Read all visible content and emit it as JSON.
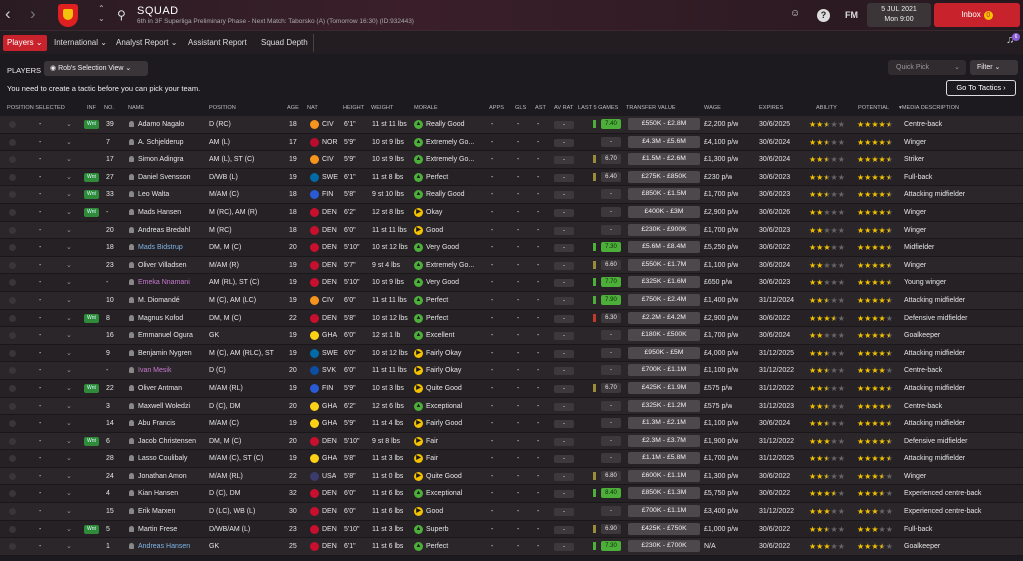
{
  "topbar": {
    "title": "SQUAD",
    "subtitle": "6th in 3F Superliga Preliminary Phase - Next Match: Taborsko (A) (Tomorrow 16:30) (ID:932443)",
    "date": "5 JUL 2021",
    "time": "Mon 9:00",
    "fm_label": "FM",
    "inbox_label": "Inbox",
    "inbox_badge": "0",
    "notif_badge": "6"
  },
  "tabs": [
    "Players",
    "International",
    "Analyst Report",
    "Assistant Report",
    "Squad Depth"
  ],
  "toolbar": {
    "players_label": "PLAYERS",
    "view": "Rob's Selection View",
    "quick_pick": "Quick Pick",
    "filter": "Filter",
    "message": "You need to create a tactic before you can pick your team.",
    "go_to_tactics": "Go To Tactics"
  },
  "columns": [
    "POSITION SELECTED",
    "INF",
    "NO.",
    "NAME",
    "POSITION",
    "AGE",
    "NAT",
    "HEIGHT",
    "WEIGHT",
    "MORALE",
    "APPS",
    "GLS",
    "AST",
    "AV RAT",
    "LAST 5 GAMES",
    "TRANSFER VALUE",
    "WAGE",
    "EXPIRES",
    "ABILITY",
    "POTENTIAL",
    "MEDIA DESCRIPTION"
  ],
  "colors": {
    "accent": "#c8232c",
    "wanted": "#2f8b3a",
    "star": "#f2c200"
  },
  "players": [
    {
      "inf": "Wnt",
      "no": "39",
      "name": "Adamo Nagalo",
      "pos": "D (RC)",
      "age": "18",
      "nat": "CIV",
      "nat_color": "#f7941d",
      "height": "6'1\"",
      "weight": "11 st 11 lbs",
      "morale": "Really Good",
      "m": "g",
      "apps": "-",
      "gls": "-",
      "ast": "-",
      "avr": "-",
      "form": "7.40",
      "form_c": "g",
      "value": "£550K - £2.8M",
      "wage": "£2,200 p/w",
      "expires": "30/6/2025",
      "ability": 2.5,
      "potential": 4.5,
      "media": "Centre-back",
      "style": ""
    },
    {
      "inf": "",
      "no": "7",
      "name": "A. Schjelderup",
      "pos": "AM (L)",
      "age": "17",
      "nat": "NOR",
      "nat_color": "#ba0c2f",
      "height": "5'9\"",
      "weight": "10 st 9 lbs",
      "morale": "Extremely Go...",
      "m": "g",
      "apps": "-",
      "gls": "-",
      "ast": "-",
      "avr": "-",
      "form": "-",
      "form_c": "",
      "value": "£4.3M - £5.6M",
      "wage": "£4,100 p/w",
      "expires": "30/6/2024",
      "ability": 2.5,
      "potential": 4.5,
      "media": "Winger",
      "style": ""
    },
    {
      "inf": "",
      "no": "17",
      "name": "Simon Adingra",
      "pos": "AM (L), ST (C)",
      "age": "19",
      "nat": "CIV",
      "nat_color": "#f7941d",
      "height": "5'9\"",
      "weight": "10 st 9 lbs",
      "morale": "Extremely Go...",
      "m": "g",
      "apps": "-",
      "gls": "-",
      "ast": "-",
      "avr": "-",
      "form": "6.70",
      "form_c": "n",
      "value": "£1.5M - £2.6M",
      "wage": "£1,300 p/w",
      "expires": "30/6/2024",
      "ability": 2.5,
      "potential": 4.5,
      "media": "Striker",
      "style": ""
    },
    {
      "inf": "Wnt",
      "no": "27",
      "name": "Daniel Svensson",
      "pos": "D/WB (L)",
      "age": "19",
      "nat": "SWE",
      "nat_color": "#006aa7",
      "height": "6'1\"",
      "weight": "11 st 8 lbs",
      "morale": "Perfect",
      "m": "g",
      "apps": "-",
      "gls": "-",
      "ast": "-",
      "avr": "-",
      "form": "6.40",
      "form_c": "n",
      "value": "£275K - £850K",
      "wage": "£230 p/w",
      "expires": "30/6/2023",
      "ability": 2.5,
      "potential": 4.5,
      "media": "Full-back",
      "style": ""
    },
    {
      "inf": "Wnt",
      "no": "33",
      "name": "Leo Walta",
      "pos": "M/AM (C)",
      "age": "18",
      "nat": "FIN",
      "nat_color": "#2a5bd7",
      "height": "5'8\"",
      "weight": "9 st 10 lbs",
      "morale": "Really Good",
      "m": "g",
      "apps": "-",
      "gls": "-",
      "ast": "-",
      "avr": "-",
      "form": "-",
      "form_c": "",
      "value": "£850K - £1.5M",
      "wage": "£1,700 p/w",
      "expires": "30/6/2023",
      "ability": 2.5,
      "potential": 4.5,
      "media": "Attacking midfielder",
      "style": ""
    },
    {
      "inf": "Wnt",
      "no": "-",
      "name": "Mads Hansen",
      "pos": "M (RC), AM (R)",
      "age": "18",
      "nat": "DEN",
      "nat_color": "#c8102e",
      "height": "6'2\"",
      "weight": "12 st 8 lbs",
      "morale": "Okay",
      "m": "y",
      "apps": "-",
      "gls": "-",
      "ast": "-",
      "avr": "-",
      "form": "-",
      "form_c": "",
      "value": "£400K - £3M",
      "wage": "£2,900 p/w",
      "expires": "30/6/2026",
      "ability": 2,
      "potential": 4.5,
      "media": "Winger",
      "style": ""
    },
    {
      "inf": "",
      "no": "20",
      "name": "Andreas Bredahl",
      "pos": "M (RC)",
      "age": "18",
      "nat": "DEN",
      "nat_color": "#c8102e",
      "height": "6'0\"",
      "weight": "11 st 11 lbs",
      "morale": "Good",
      "m": "y",
      "apps": "-",
      "gls": "-",
      "ast": "-",
      "avr": "-",
      "form": "-",
      "form_c": "",
      "value": "£230K - £900K",
      "wage": "£1,700 p/w",
      "expires": "30/6/2023",
      "ability": 2,
      "potential": 4.5,
      "media": "Winger",
      "style": ""
    },
    {
      "inf": "",
      "no": "18",
      "name": "Mads Bidstrup",
      "pos": "DM, M (C)",
      "age": "20",
      "nat": "DEN",
      "nat_color": "#c8102e",
      "height": "5'10\"",
      "weight": "10 st 12 lbs",
      "morale": "Very Good",
      "m": "g",
      "apps": "-",
      "gls": "-",
      "ast": "-",
      "avr": "-",
      "form": "7.30",
      "form_c": "g",
      "value": "£5.6M - £8.4M",
      "wage": "£5,250 p/w",
      "expires": "30/6/2022",
      "ability": 3,
      "potential": 4.5,
      "media": "Midfielder",
      "style": "lnk"
    },
    {
      "inf": "",
      "no": "23",
      "name": "Oliver Villadsen",
      "pos": "M/AM (R)",
      "age": "19",
      "nat": "DEN",
      "nat_color": "#c8102e",
      "height": "5'7\"",
      "weight": "9 st 4 lbs",
      "morale": "Extremely Go...",
      "m": "g",
      "apps": "-",
      "gls": "-",
      "ast": "-",
      "avr": "-",
      "form": "6.60",
      "form_c": "n",
      "value": "£550K - £1.7M",
      "wage": "£1,100 p/w",
      "expires": "30/6/2024",
      "ability": 2,
      "potential": 4.5,
      "media": "Winger",
      "style": ""
    },
    {
      "inf": "",
      "no": "-",
      "name": "Emeka Nnamani",
      "pos": "AM (RL), ST (C)",
      "age": "19",
      "nat": "DEN",
      "nat_color": "#c8102e",
      "height": "5'10\"",
      "weight": "10 st 9 lbs",
      "morale": "Very Good",
      "m": "g",
      "apps": "-",
      "gls": "-",
      "ast": "-",
      "avr": "-",
      "form": "7.70",
      "form_c": "g",
      "value": "£325K - £1.6M",
      "wage": "£650 p/w",
      "expires": "30/6/2023",
      "ability": 2,
      "potential": 4.5,
      "media": "Young winger",
      "style": "loan"
    },
    {
      "inf": "",
      "no": "10",
      "name": "M. Diomandé",
      "pos": "M (C), AM (LC)",
      "age": "19",
      "nat": "CIV",
      "nat_color": "#f7941d",
      "height": "6'0\"",
      "weight": "11 st 11 lbs",
      "morale": "Perfect",
      "m": "g",
      "apps": "-",
      "gls": "-",
      "ast": "-",
      "avr": "-",
      "form": "7.90",
      "form_c": "g",
      "value": "£750K - £2.4M",
      "wage": "£1,400 p/w",
      "expires": "31/12/2024",
      "ability": 2.5,
      "potential": 4.5,
      "media": "Attacking midfielder",
      "style": ""
    },
    {
      "inf": "Wnt",
      "no": "8",
      "name": "Magnus Kofod",
      "pos": "DM, M (C)",
      "age": "22",
      "nat": "DEN",
      "nat_color": "#c8102e",
      "height": "5'8\"",
      "weight": "10 st 12 lbs",
      "morale": "Perfect",
      "m": "g",
      "apps": "-",
      "gls": "-",
      "ast": "-",
      "avr": "-",
      "form": "6.30",
      "form_c": "r",
      "value": "£2.2M - £4.2M",
      "wage": "£2,900 p/w",
      "expires": "30/6/2022",
      "ability": 3.5,
      "potential": 4,
      "media": "Defensive midfielder",
      "style": ""
    },
    {
      "inf": "",
      "no": "16",
      "name": "Emmanuel Ogura",
      "pos": "GK",
      "age": "19",
      "nat": "GHA",
      "nat_color": "#fcd116",
      "height": "6'0\"",
      "weight": "12 st 1 lb",
      "morale": "Excellent",
      "m": "g",
      "apps": "-",
      "gls": "-",
      "ast": "-",
      "avr": "-",
      "form": "-",
      "form_c": "",
      "value": "£180K - £500K",
      "wage": "£1,700 p/w",
      "expires": "30/6/2024",
      "ability": 2,
      "potential": 4.5,
      "media": "Goalkeeper",
      "style": ""
    },
    {
      "inf": "",
      "no": "9",
      "name": "Benjamin Nygren",
      "pos": "M (C), AM (RLC), ST",
      "age": "19",
      "nat": "SWE",
      "nat_color": "#006aa7",
      "height": "6'0\"",
      "weight": "10 st 12 lbs",
      "morale": "Fairly Okay",
      "m": "y",
      "apps": "-",
      "gls": "-",
      "ast": "-",
      "avr": "-",
      "form": "-",
      "form_c": "",
      "value": "£950K - £5M",
      "wage": "£4,000 p/w",
      "expires": "31/12/2025",
      "ability": 2.5,
      "potential": 4.5,
      "media": "Attacking midfielder",
      "style": ""
    },
    {
      "inf": "",
      "no": "-",
      "name": "Ivan Mesik",
      "pos": "D (C)",
      "age": "20",
      "nat": "SVK",
      "nat_color": "#0b4ea2",
      "height": "6'0\"",
      "weight": "11 st 11 lbs",
      "morale": "Fairly Okay",
      "m": "y",
      "apps": "-",
      "gls": "-",
      "ast": "-",
      "avr": "-",
      "form": "-",
      "form_c": "",
      "value": "£700K - £1.1M",
      "wage": "£1,100 p/w",
      "expires": "31/12/2022",
      "ability": 2.5,
      "potential": 4,
      "media": "Centre-back",
      "style": "loan"
    },
    {
      "inf": "Wnt",
      "no": "22",
      "name": "Oliver Antman",
      "pos": "M/AM (RL)",
      "age": "19",
      "nat": "FIN",
      "nat_color": "#2a5bd7",
      "height": "5'9\"",
      "weight": "10 st 3 lbs",
      "morale": "Quite Good",
      "m": "y",
      "apps": "-",
      "gls": "-",
      "ast": "-",
      "avr": "-",
      "form": "6.70",
      "form_c": "n",
      "value": "£425K - £1.9M",
      "wage": "£575 p/w",
      "expires": "31/12/2022",
      "ability": 2.5,
      "potential": 4.5,
      "media": "Attacking midfielder",
      "style": ""
    },
    {
      "inf": "",
      "no": "3",
      "name": "Maxwell Woledzi",
      "pos": "D (C), DM",
      "age": "20",
      "nat": "GHA",
      "nat_color": "#fcd116",
      "height": "6'2\"",
      "weight": "12 st 6 lbs",
      "morale": "Exceptional",
      "m": "g",
      "apps": "-",
      "gls": "-",
      "ast": "-",
      "avr": "-",
      "form": "-",
      "form_c": "",
      "value": "£325K - £1.2M",
      "wage": "£575 p/w",
      "expires": "31/12/2023",
      "ability": 2.5,
      "potential": 4.5,
      "media": "Centre-back",
      "style": ""
    },
    {
      "inf": "",
      "no": "14",
      "name": "Abu Francis",
      "pos": "M/AM (C)",
      "age": "19",
      "nat": "GHA",
      "nat_color": "#fcd116",
      "height": "5'9\"",
      "weight": "11 st 4 lbs",
      "morale": "Fairly Good",
      "m": "y",
      "apps": "-",
      "gls": "-",
      "ast": "-",
      "avr": "-",
      "form": "-",
      "form_c": "",
      "value": "£1.3M - £2.1M",
      "wage": "£1,100 p/w",
      "expires": "30/6/2024",
      "ability": 2.5,
      "potential": 4.5,
      "media": "Attacking midfielder",
      "style": ""
    },
    {
      "inf": "Wnt",
      "no": "6",
      "name": "Jacob Christensen",
      "pos": "DM, M (C)",
      "age": "20",
      "nat": "DEN",
      "nat_color": "#c8102e",
      "height": "5'10\"",
      "weight": "9 st 8 lbs",
      "morale": "Fair",
      "m": "y",
      "apps": "-",
      "gls": "-",
      "ast": "-",
      "avr": "-",
      "form": "-",
      "form_c": "",
      "value": "£2.3M - £3.7M",
      "wage": "£1,900 p/w",
      "expires": "31/12/2022",
      "ability": 3,
      "potential": 4.5,
      "media": "Defensive midfielder",
      "style": ""
    },
    {
      "inf": "",
      "no": "28",
      "name": "Lasso Coulibaly",
      "pos": "M/AM (C), ST (C)",
      "age": "19",
      "nat": "GHA",
      "nat_color": "#fcd116",
      "height": "5'8\"",
      "weight": "11 st 3 lbs",
      "morale": "Fair",
      "m": "y",
      "apps": "-",
      "gls": "-",
      "ast": "-",
      "avr": "-",
      "form": "-",
      "form_c": "",
      "value": "£1.1M - £5.8M",
      "wage": "£1,700 p/w",
      "expires": "31/12/2025",
      "ability": 2.5,
      "potential": 4.5,
      "media": "Attacking midfielder",
      "style": ""
    },
    {
      "inf": "",
      "no": "24",
      "name": "Jonathan Amon",
      "pos": "M/AM (RL)",
      "age": "22",
      "nat": "USA",
      "nat_color": "#3c3b6e",
      "height": "5'8\"",
      "weight": "11 st 0 lbs",
      "morale": "Quite Good",
      "m": "y",
      "apps": "-",
      "gls": "-",
      "ast": "-",
      "avr": "-",
      "form": "6.80",
      "form_c": "n",
      "value": "£600K - £1.1M",
      "wage": "£1,300 p/w",
      "expires": "30/6/2022",
      "ability": 2.5,
      "potential": 3.5,
      "media": "Winger",
      "style": ""
    },
    {
      "inf": "",
      "no": "4",
      "name": "Kian Hansen",
      "pos": "D (C), DM",
      "age": "32",
      "nat": "DEN",
      "nat_color": "#c8102e",
      "height": "6'0\"",
      "weight": "11 st 6 lbs",
      "morale": "Exceptional",
      "m": "g",
      "apps": "-",
      "gls": "-",
      "ast": "-",
      "avr": "-",
      "form": "8.40",
      "form_c": "g",
      "value": "£850K - £1.3M",
      "wage": "£5,750 p/w",
      "expires": "30/6/2022",
      "ability": 3.5,
      "potential": 3.5,
      "media": "Experienced centre-back",
      "style": ""
    },
    {
      "inf": "",
      "no": "15",
      "name": "Erik Marxen",
      "pos": "D (LC), WB (L)",
      "age": "30",
      "nat": "DEN",
      "nat_color": "#c8102e",
      "height": "6'0\"",
      "weight": "11 st 6 lbs",
      "morale": "Good",
      "m": "y",
      "apps": "-",
      "gls": "-",
      "ast": "-",
      "avr": "-",
      "form": "-",
      "form_c": "",
      "value": "£700K - £1.1M",
      "wage": "£3,400 p/w",
      "expires": "31/12/2022",
      "ability": 3,
      "potential": 3,
      "media": "Experienced centre-back",
      "style": ""
    },
    {
      "inf": "Wnt",
      "no": "5",
      "name": "Martin Frese",
      "pos": "D/WB/AM (L)",
      "age": "23",
      "nat": "DEN",
      "nat_color": "#c8102e",
      "height": "5'10\"",
      "weight": "11 st 3 lbs",
      "morale": "Superb",
      "m": "g",
      "apps": "-",
      "gls": "-",
      "ast": "-",
      "avr": "-",
      "form": "6.90",
      "form_c": "n",
      "value": "£425K - £750K",
      "wage": "£1,000 p/w",
      "expires": "30/6/2022",
      "ability": 2.5,
      "potential": 3,
      "media": "Full-back",
      "style": ""
    },
    {
      "inf": "",
      "no": "1",
      "name": "Andreas Hansen",
      "pos": "GK",
      "age": "25",
      "nat": "DEN",
      "nat_color": "#c8102e",
      "height": "6'1\"",
      "weight": "11 st 6 lbs",
      "morale": "Perfect",
      "m": "g",
      "apps": "-",
      "gls": "-",
      "ast": "-",
      "avr": "-",
      "form": "7.30",
      "form_c": "g",
      "value": "£230K - £700K",
      "wage": "N/A",
      "expires": "30/6/2022",
      "ability": 3,
      "potential": 3.5,
      "media": "Goalkeeper",
      "style": "lnk"
    }
  ]
}
